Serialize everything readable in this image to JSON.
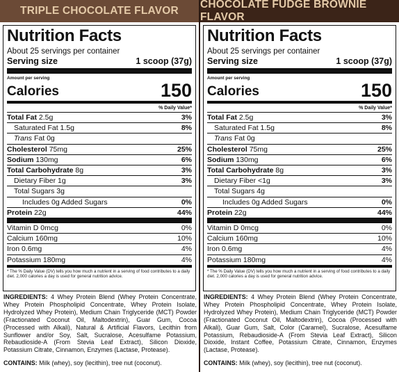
{
  "panels": [
    {
      "flavor": "TRIPLE CHOCOLATE FLAVOR",
      "title": "Nutrition Facts",
      "servings_per_container": "About 25 servings per container",
      "serving_size_label": "Serving size",
      "serving_size_value": "1 scoop (37g)",
      "amount_per_serving": "Amount per serving",
      "calories_label": "Calories",
      "calories_value": "150",
      "dv_header": "% Daily Value*",
      "total_fat": {
        "label": "Total Fat",
        "amount": "2.5g",
        "pct": "3%"
      },
      "saturated_fat": {
        "label": "Saturated Fat 1.5g",
        "pct": "8%"
      },
      "trans_fat": {
        "label_i": "Trans",
        "label_rest": " Fat 0g"
      },
      "cholesterol": {
        "label": "Cholesterol",
        "amount": "75mg",
        "pct": "25%"
      },
      "sodium": {
        "label": "Sodium",
        "amount": "130mg",
        "pct": "6%"
      },
      "total_carb": {
        "label": "Total Carbohydrate",
        "amount": "8g",
        "pct": "3%"
      },
      "fiber": {
        "label": "Dietary Fiber 1g",
        "pct": "3%"
      },
      "sugars": {
        "label": "Total Sugars 3g"
      },
      "added_sugars": {
        "label": "Includes 0g Added Sugars",
        "pct": "0%"
      },
      "protein": {
        "label": "Protein",
        "amount": "22g",
        "pct": "44%"
      },
      "vitamin_d": {
        "label": "Vitamin D 0mcg",
        "pct": "0%"
      },
      "calcium": {
        "label": "Calcium 160mg",
        "pct": "10%"
      },
      "iron": {
        "label": "Iron 0.6mg",
        "pct": "4%"
      },
      "potassium": {
        "label": "Potassium 180mg",
        "pct": "4%"
      },
      "footnote": "* The % Daily Value (DV) tells you how much a nutrient in a serving of food contributes to a daily diet. 2,000 calories a day is used for general nutrition advice.",
      "ingredients_label": "INGREDIENTS:",
      "ingredients_text": " 4 Whey Protein Blend (Whey Protein Concentrate, Whey Protein Phospholipid Concentrate, Whey Protein Isolate, Hydrolyzed Whey Protein), Medium Chain Triglyceride (MCT) Powder (Fractionated Coconut Oil, Maltodextrin), Guar Gum, Cocoa (Processed with Alkali), Natural & Artificial Flavors, Lecithin from Sunflower and/or Soy, Salt, Sucralose, Acesulfame Potassium, Rebaudioside-A (From Stevia Leaf Extract), Silicon Dioxide, Potassium Citrate, Cinnamon, Enzymes (Lactase, Protease).",
      "contains_label": "CONTAINS:",
      "contains_text": " Milk (whey), soy (lecithin), tree nut (coconut)."
    },
    {
      "flavor": "CHOCOLATE FUDGE BROWNIE FLAVOR",
      "title": "Nutrition Facts",
      "servings_per_container": "About 25 servings per container",
      "serving_size_label": "Serving size",
      "serving_size_value": "1 scoop (37g)",
      "amount_per_serving": "Amount per serving",
      "calories_label": "Calories",
      "calories_value": "150",
      "dv_header": "% Daily Value*",
      "total_fat": {
        "label": "Total Fat",
        "amount": "2.5g",
        "pct": "3%"
      },
      "saturated_fat": {
        "label": "Saturated Fat 1.5g",
        "pct": "8%"
      },
      "trans_fat": {
        "label_i": "Trans",
        "label_rest": " Fat 0g"
      },
      "cholesterol": {
        "label": "Cholesterol",
        "amount": "75mg",
        "pct": "25%"
      },
      "sodium": {
        "label": "Sodium",
        "amount": "130mg",
        "pct": "6%"
      },
      "total_carb": {
        "label": "Total Carbohydrate",
        "amount": "8g",
        "pct": "3%"
      },
      "fiber": {
        "label": "Dietary Fiber <1g",
        "pct": "3%"
      },
      "sugars": {
        "label": "Total Sugars 4g"
      },
      "added_sugars": {
        "label": "Includes 0g Added Sugars",
        "pct": "0%"
      },
      "protein": {
        "label": "Protein",
        "amount": "22g",
        "pct": "44%"
      },
      "vitamin_d": {
        "label": "Vitamin D 0mcg",
        "pct": "0%"
      },
      "calcium": {
        "label": "Calcium 160mg",
        "pct": "10%"
      },
      "iron": {
        "label": "Iron 0.6mg",
        "pct": "4%"
      },
      "potassium": {
        "label": "Potassium 180mg",
        "pct": "4%"
      },
      "footnote": "* The % Daily Value (DV) tells you how much a nutrient in a serving of food contributes to a daily diet. 2,000 calories a day is used for general nutrition advice.",
      "ingredients_label": "INGREDIENTS:",
      "ingredients_text": " 4 Whey Protein Blend (Whey Protein Concentrate, Whey Protein Phospholipid Concentrate, Whey Protein Isolate, Hydrolyzed Whey Protein), Medium Chain Triglyceride (MCT) Powder (Fractionated Coconut Oil, Maltodextrin), Cocoa (Processed with Alkali), Guar Gum, Salt, Color (Caramel), Sucralose, Acesulfame Potassium, Rebaudioside-A (From Stevia Leaf Extract), Silicon Dioxide, Instant Coffee, Potassium Citrate, Cinnamon, Enzymes (Lactase, Protease).",
      "contains_label": "CONTAINS:",
      "contains_text": " Milk (whey), soy (lecithin), tree nut (coconut)."
    }
  ],
  "colors": {
    "left_header_bg": "#6b4a36",
    "right_header_bg": "#3b2418",
    "header_text": "#e3c9a7"
  }
}
